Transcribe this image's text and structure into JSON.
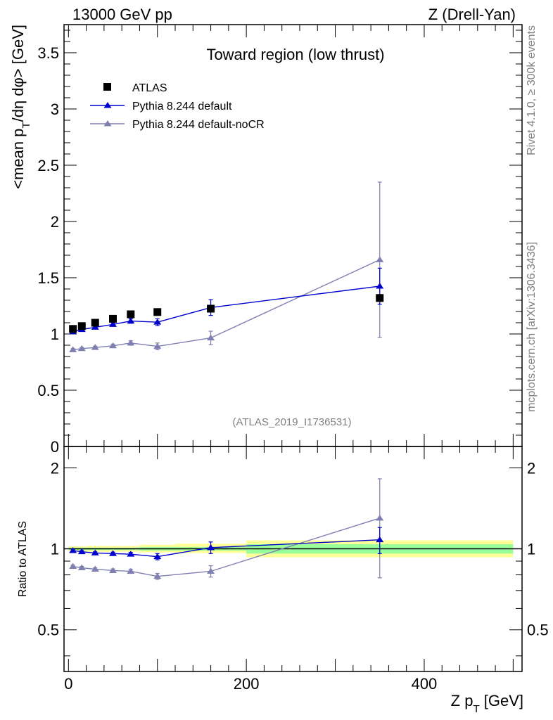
{
  "header": {
    "energy_label": "13000 GeV pp",
    "process_label": "Z (Drell-Yan)",
    "title": "Toward region (low thrust)",
    "analysis_id": "(ATLAS_2019_I1736531)",
    "side_label_top": "Rivet 4.1.0, ≥ 300k events",
    "side_label_bottom": "mcplots.cern.ch [arXiv:1306.3436]"
  },
  "colors": {
    "atlas": "#000000",
    "default": "#0000cc",
    "nocr": "#7f7fb2",
    "band_inner": "#99ff99",
    "band_outer": "#ffff99"
  },
  "chart_data": [
    {
      "type": "scatter",
      "panel": "main",
      "title": "Toward region (low thrust)",
      "ylabel": "<mean p_T/dη dφ> [GeV]",
      "xlim": [
        -5,
        510
      ],
      "ylim": [
        0,
        3.75
      ],
      "yticks": [
        0,
        0.5,
        1,
        1.5,
        2,
        2.5,
        3,
        3.5
      ],
      "ytick_labels": [
        "0",
        "0.5",
        "1",
        "1.5",
        "2",
        "2.5",
        "3",
        "3.5"
      ],
      "legend": [
        "ATLAS",
        "Pythia 8.244 default",
        "Pythia 8.244 default-noCR"
      ],
      "series": [
        {
          "name": "ATLAS",
          "marker": "square",
          "x": [
            5,
            15,
            30,
            50,
            70,
            100,
            160,
            350
          ],
          "y": [
            1.045,
            1.07,
            1.1,
            1.135,
            1.175,
            1.195,
            1.225,
            1.32
          ],
          "yerr": [
            0.01,
            0.01,
            0.012,
            0.012,
            0.015,
            0.015,
            0.02,
            0.03
          ]
        },
        {
          "name": "Pythia 8.244 default",
          "marker": "triangle",
          "line": true,
          "x": [
            5,
            15,
            30,
            50,
            70,
            100,
            160,
            350
          ],
          "y": [
            1.02,
            1.04,
            1.06,
            1.085,
            1.115,
            1.105,
            1.235,
            1.425
          ],
          "yerr": [
            0.01,
            0.01,
            0.012,
            0.015,
            0.02,
            0.03,
            0.07,
            0.16
          ]
        },
        {
          "name": "Pythia 8.244 default-noCR",
          "marker": "triangle",
          "line": true,
          "x": [
            5,
            15,
            30,
            50,
            70,
            100,
            160,
            350
          ],
          "y": [
            0.86,
            0.87,
            0.88,
            0.895,
            0.92,
            0.89,
            0.965,
            1.66
          ],
          "yerr": [
            0.01,
            0.01,
            0.012,
            0.015,
            0.02,
            0.03,
            0.06,
            0.69
          ]
        }
      ]
    },
    {
      "type": "scatter",
      "panel": "ratio",
      "xlabel": "Z p_T [GeV]",
      "ylabel": "Ratio to ATLAS",
      "xlim": [
        -5,
        510
      ],
      "ylim": [
        0.35,
        2.4
      ],
      "yscale": "log",
      "yticks": [
        0.5,
        1,
        2
      ],
      "ytick_labels": [
        "0.5",
        "1",
        "2"
      ],
      "xticks": [
        0,
        200,
        400
      ],
      "xtick_labels": [
        "0",
        "200",
        "400"
      ],
      "band": {
        "x_edges": [
          0,
          10,
          20,
          40,
          60,
          80,
          120,
          200,
          500
        ],
        "inner_lo": [
          0.99,
          0.99,
          0.99,
          0.99,
          0.99,
          0.985,
          0.985,
          0.96
        ],
        "inner_hi": [
          1.01,
          1.01,
          1.01,
          1.01,
          1.01,
          1.015,
          1.015,
          1.04
        ],
        "outer_lo": [
          0.98,
          0.98,
          0.975,
          0.975,
          0.975,
          0.97,
          0.965,
          0.93
        ],
        "outer_hi": [
          1.02,
          1.02,
          1.025,
          1.025,
          1.025,
          1.035,
          1.045,
          1.075
        ]
      },
      "series": [
        {
          "name": "Pythia 8.244 default",
          "x": [
            5,
            15,
            30,
            50,
            70,
            100,
            160,
            350
          ],
          "y": [
            0.985,
            0.975,
            0.965,
            0.96,
            0.955,
            0.935,
            1.01,
            1.08
          ],
          "yerr": [
            0.01,
            0.01,
            0.01,
            0.012,
            0.015,
            0.025,
            0.05,
            0.12
          ]
        },
        {
          "name": "Pythia 8.244 default-noCR",
          "x": [
            5,
            15,
            30,
            50,
            70,
            100,
            160,
            350
          ],
          "y": [
            0.86,
            0.85,
            0.84,
            0.83,
            0.825,
            0.79,
            0.825,
            1.3
          ],
          "yerr": [
            0.01,
            0.01,
            0.01,
            0.012,
            0.015,
            0.02,
            0.04,
            0.52
          ]
        }
      ]
    }
  ]
}
